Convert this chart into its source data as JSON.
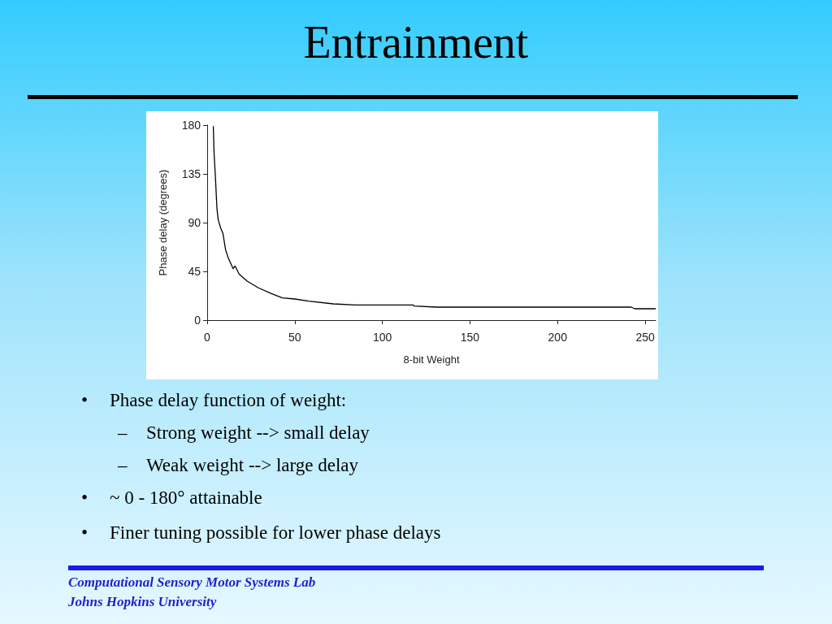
{
  "chart_data": {
    "type": "line",
    "title": "Entrainment",
    "xlabel": "8-bit Weight",
    "ylabel": "Phase delay (degrees)",
    "x": [
      3.5,
      3.9,
      4.6,
      5.6,
      6.3,
      7.7,
      9,
      10.5,
      12,
      14.8,
      15.9,
      18.2,
      22.8,
      29,
      36.7,
      42.9,
      50,
      58,
      72,
      84.6,
      117.7,
      118,
      131,
      242,
      244,
      256
    ],
    "series": [
      {
        "color": "#000000",
        "values": [
          179,
          155,
          135,
          102.5,
          92.5,
          85,
          80,
          65,
          57.5,
          47.5,
          50,
          42.5,
          36,
          30,
          24.5,
          20.5,
          19.5,
          17.5,
          15,
          14,
          14,
          13,
          12,
          12,
          10.5,
          10.5
        ]
      }
    ],
    "xlim": [
      0,
      256
    ],
    "xticks": [
      0,
      50,
      100,
      150,
      200,
      250
    ],
    "ylim": [
      0,
      180
    ],
    "yticks": [
      0,
      45,
      90,
      135,
      180
    ],
    "grid": false,
    "marker": "none",
    "line_style": "solid",
    "annotations": [
      "• Phase delay function of weight:",
      "– Strong weight --> small delay",
      "– Weak weight --> large delay",
      "• ~ 0 - 180° attainable",
      "• Finer tuning possible for lower phase delays",
      "Computational Sensory Motor Systems Lab",
      "Johns Hopkins University"
    ]
  }
}
